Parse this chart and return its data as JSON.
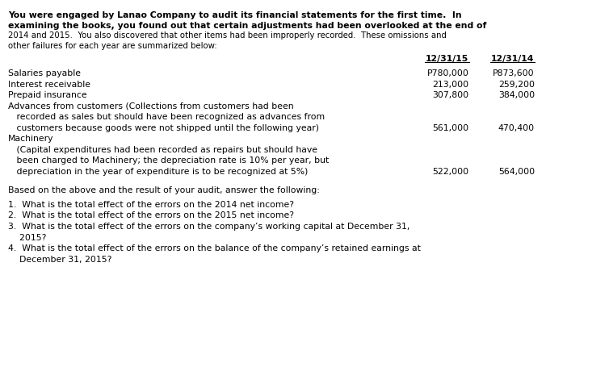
{
  "bg_color": "#ffffff",
  "text_color": "#000000",
  "font_family": "DejaVu Sans",
  "intro_paragraph": [
    "You were engaged by Lanao Company to audit its financial statements for the first time.  In",
    "examining the books, you found out that certain adjustments had been overlooked at the end of",
    "2014 and 2015.  You also discovered that other items had been improperly recorded.  These omissions and",
    "other failures for each year are summarized below:"
  ],
  "col_header_label1": "12/31/15",
  "col_header_label2": "12/31/14",
  "col_header_underline": true,
  "table_rows": [
    {
      "label": "Salaries payable",
      "indent": 0,
      "val1": "P780,000",
      "val2": "P873,600",
      "val1_prefix": true,
      "val2_prefix": true
    },
    {
      "label": "Interest receivable",
      "indent": 0,
      "val1": "213,000",
      "val2": "259,200",
      "val1_prefix": false,
      "val2_prefix": false
    },
    {
      "label": "Prepaid insurance",
      "indent": 0,
      "val1": "307,800",
      "val2": "384,000",
      "val1_prefix": false,
      "val2_prefix": false
    },
    {
      "label": "Advances from customers (Collections from customers had been",
      "indent": 0,
      "val1": null,
      "val2": null
    },
    {
      "label": "   recorded as sales but should have been recognized as advances from",
      "indent": 1,
      "val1": null,
      "val2": null
    },
    {
      "label": "   customers because goods were not shipped until the following year)",
      "indent": 1,
      "val1": "561,000",
      "val2": "470,400",
      "val1_prefix": false,
      "val2_prefix": false
    },
    {
      "label": "Machinery",
      "indent": 0,
      "val1": null,
      "val2": null
    },
    {
      "label": "   (Capital expenditures had been recorded as repairs but should have",
      "indent": 1,
      "val1": null,
      "val2": null
    },
    {
      "label": "   been charged to Machinery; the depreciation rate is 10% per year, but",
      "indent": 1,
      "val1": null,
      "val2": null
    },
    {
      "label": "   depreciation in the year of expenditure is to be recognized at 5%)",
      "indent": 1,
      "val1": "522,000",
      "val2": "564,000",
      "val1_prefix": false,
      "val2_prefix": false
    }
  ],
  "based_on_text": "Based on the above and the result of your audit, answer the following:",
  "questions": [
    "1.  What is the total effect of the errors on the 2014 net income?",
    "2.  What is the total effect of the errors on the 2015 net income?",
    "3.  What is the total effect of the errors on the company’s working capital at December 31,",
    "    2015?",
    "4.  What is the total effect of the errors on the balance of the company’s retained earnings at",
    "    December 31, 2015?"
  ]
}
